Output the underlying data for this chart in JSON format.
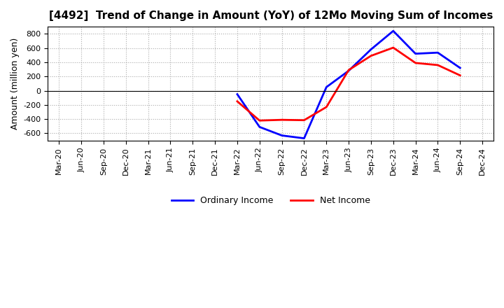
{
  "title": "[4492]  Trend of Change in Amount (YoY) of 12Mo Moving Sum of Incomes",
  "ylabel": "Amount (million yen)",
  "x_labels": [
    "Mar-20",
    "Jun-20",
    "Sep-20",
    "Dec-20",
    "Mar-21",
    "Jun-21",
    "Sep-21",
    "Dec-21",
    "Mar-22",
    "Jun-22",
    "Sep-22",
    "Dec-22",
    "Mar-23",
    "Jun-23",
    "Sep-23",
    "Dec-23",
    "Mar-24",
    "Jun-24",
    "Sep-24",
    "Dec-24"
  ],
  "ordinary_x": [
    8,
    9,
    10,
    11,
    12,
    13,
    14,
    15,
    16,
    17,
    18
  ],
  "ordinary_y": [
    -50,
    -510,
    -630,
    -670,
    50,
    280,
    580,
    840,
    520,
    535,
    320
  ],
  "net_x": [
    8,
    9,
    10,
    11,
    12,
    13,
    14,
    15,
    16,
    17,
    18
  ],
  "net_y": [
    -150,
    -420,
    -410,
    -415,
    -230,
    290,
    490,
    605,
    390,
    360,
    215
  ],
  "ordinary_color": "#0000ff",
  "net_color": "#ff0000",
  "ylim": [
    -700,
    900
  ],
  "yticks": [
    -600,
    -400,
    -200,
    0,
    200,
    400,
    600,
    800
  ],
  "bg_color": "#ffffff",
  "grid_color": "#aaaaaa",
  "legend_labels": [
    "Ordinary Income",
    "Net Income"
  ],
  "title_fontsize": 11,
  "ylabel_fontsize": 9,
  "tick_fontsize": 8
}
